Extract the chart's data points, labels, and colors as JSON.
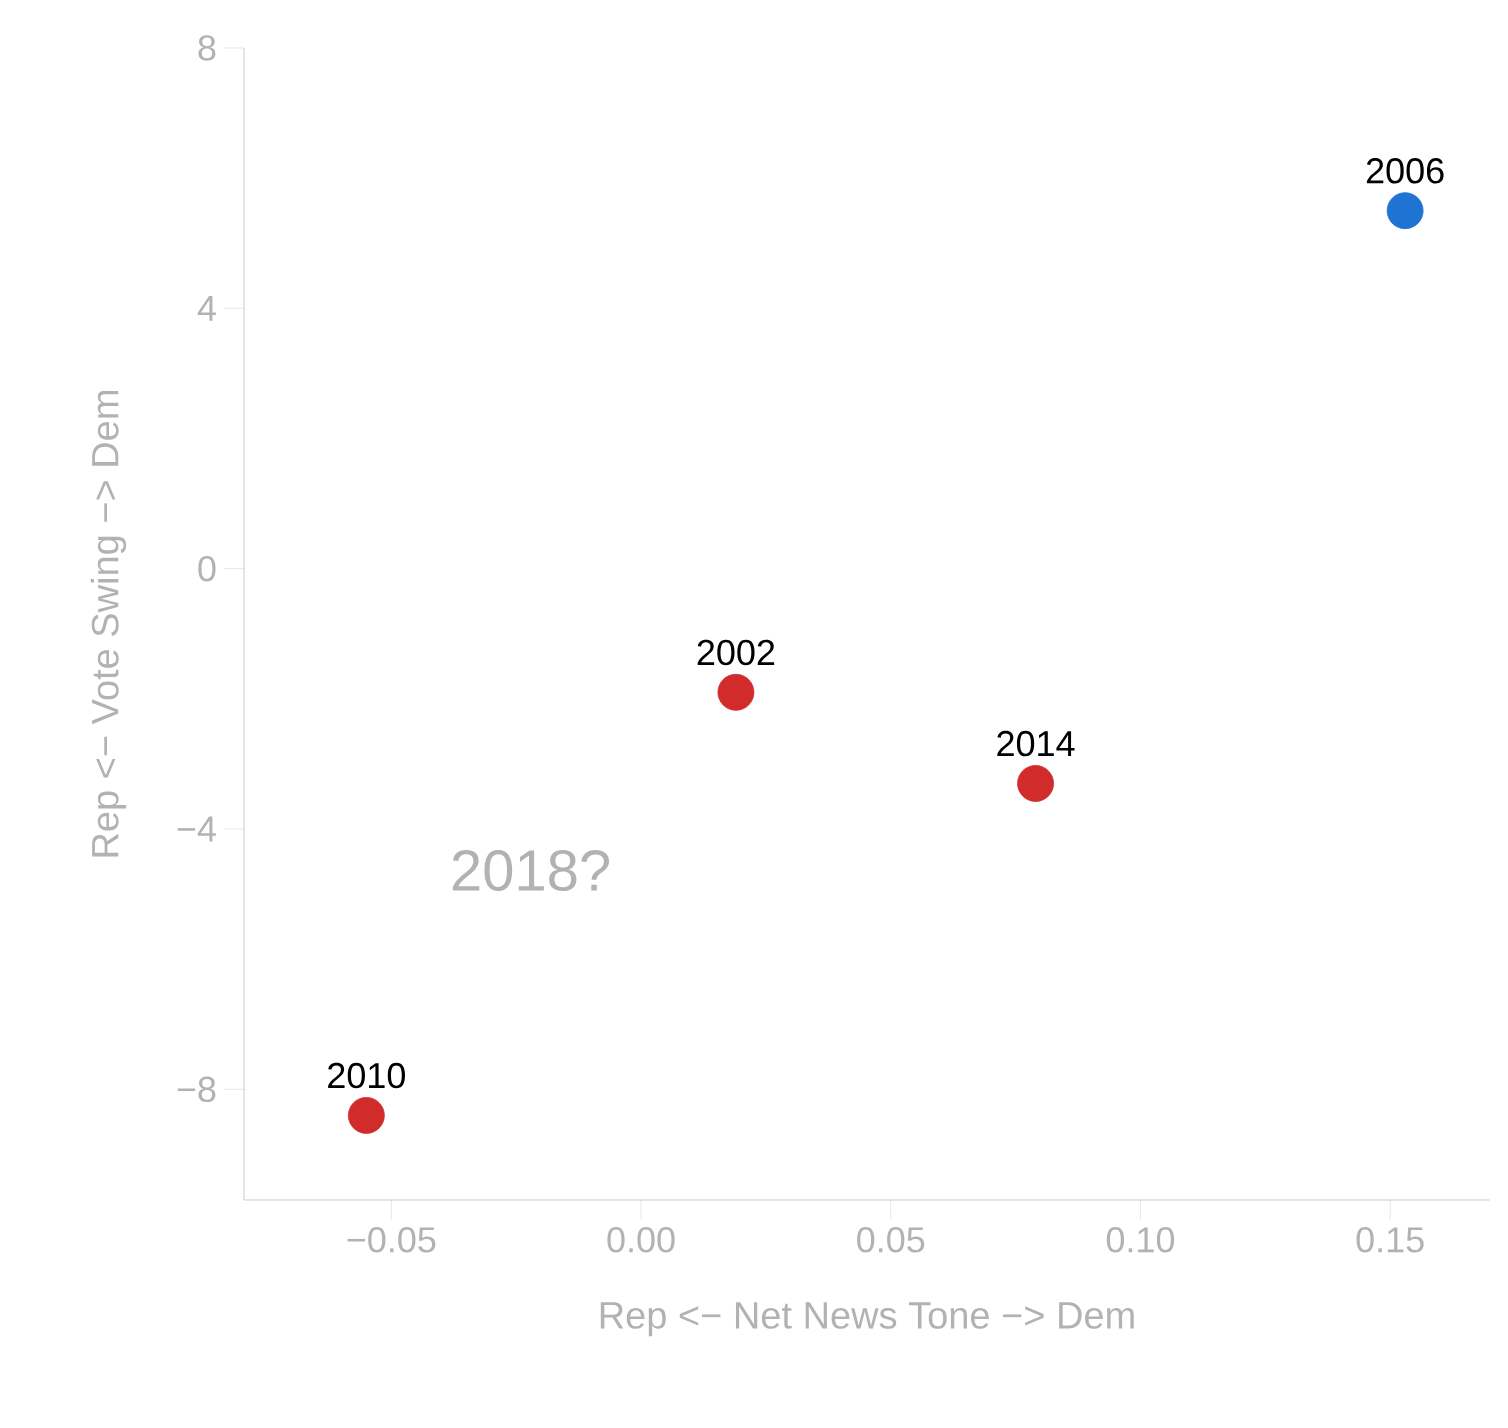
{
  "chart_data": {
    "type": "scatter",
    "xlabel": "Rep  <− Net News Tone −>  Dem",
    "ylabel": "Rep  <− Vote Swing −>  Dem",
    "series": [
      {
        "x": [
          0.019,
          0.079,
          -0.055,
          0.153
        ],
        "values": [
          -1.9,
          -3.3,
          -8.4,
          5.5
        ],
        "colors": [
          "#d22b2b",
          "#d22b2b",
          "#d22b2b",
          "#1f73d2"
        ]
      }
    ],
    "xlim": [
      -0.0795,
      0.17
    ],
    "ylim": [
      -9.7,
      8
    ],
    "xticks": [
      {
        "value": -0.05,
        "label": "−0.05"
      },
      {
        "value": 0.0,
        "label": "0.00"
      },
      {
        "value": 0.05,
        "label": "0.05"
      },
      {
        "value": 0.1,
        "label": "0.10"
      },
      {
        "value": 0.15,
        "label": "0.15"
      }
    ],
    "yticks": [
      {
        "value": -8,
        "label": "−8"
      },
      {
        "value": -4,
        "label": "−4"
      },
      0,
      4,
      8
    ],
    "marker": "circle",
    "grid": false,
    "annotations": [
      {
        "text": "2002",
        "x": 0.019,
        "y": -1.9
      },
      {
        "text": "2014",
        "x": 0.079,
        "y": -3.3
      },
      {
        "text": "2010",
        "x": -0.055,
        "y": -8.4
      },
      {
        "text": "2006",
        "x": 0.153,
        "y": 5.5
      },
      "2018?"
    ]
  }
}
